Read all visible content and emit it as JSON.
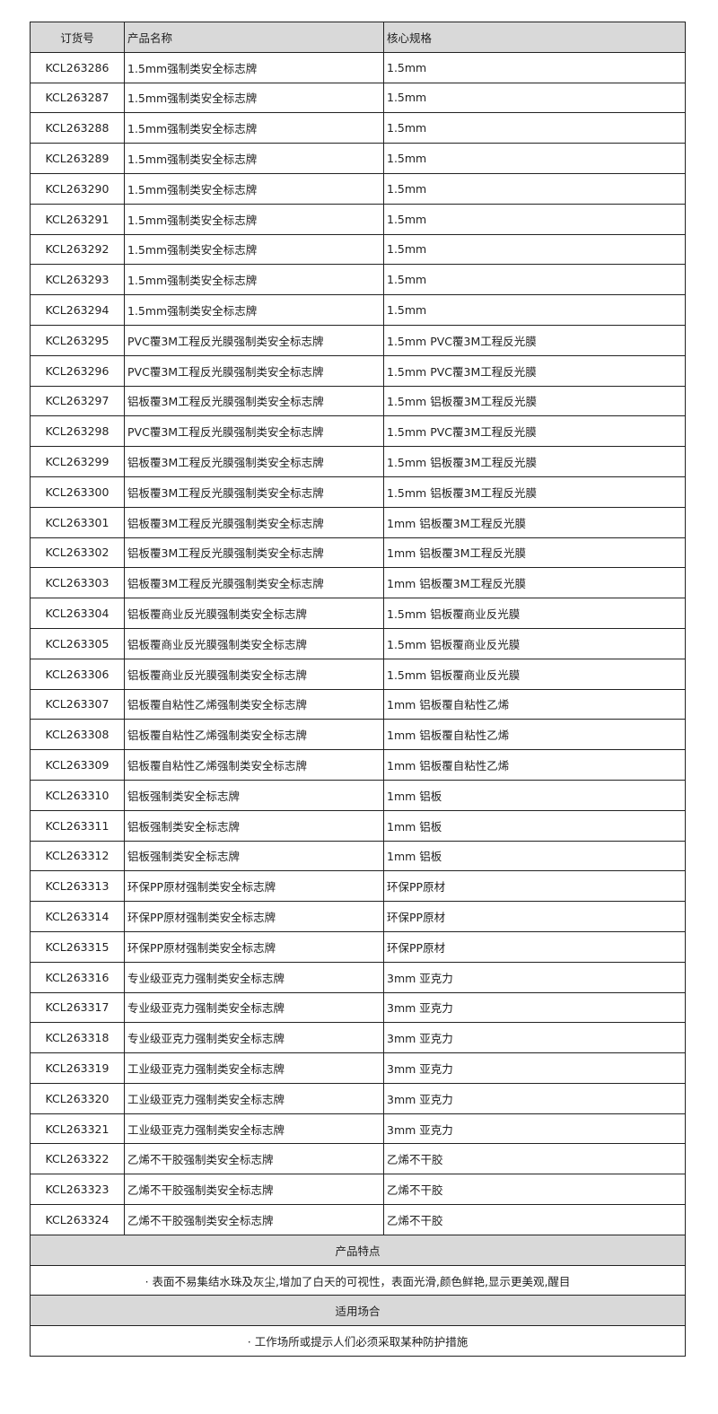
{
  "headers": [
    "订货号",
    "产品名称",
    "核心规格"
  ],
  "rows": [
    [
      "KCL263286",
      "1.5mm强制类安全标志牌",
      "1.5mm"
    ],
    [
      "KCL263287",
      "1.5mm强制类安全标志牌",
      "1.5mm"
    ],
    [
      "KCL263288",
      "1.5mm强制类安全标志牌",
      "1.5mm"
    ],
    [
      "KCL263289",
      "1.5mm强制类安全标志牌",
      "1.5mm"
    ],
    [
      "KCL263290",
      "1.5mm强制类安全标志牌",
      "1.5mm"
    ],
    [
      "KCL263291",
      "1.5mm强制类安全标志牌",
      "1.5mm"
    ],
    [
      "KCL263292",
      "1.5mm强制类安全标志牌",
      "1.5mm"
    ],
    [
      "KCL263293",
      "1.5mm强制类安全标志牌",
      "1.5mm"
    ],
    [
      "KCL263294",
      "1.5mm强制类安全标志牌",
      "1.5mm"
    ],
    [
      "KCL263295",
      "PVC覆3M工程反光膜强制类安全标志牌",
      "1.5mm PVC覆3M工程反光膜"
    ],
    [
      "KCL263296",
      "PVC覆3M工程反光膜强制类安全标志牌",
      "1.5mm PVC覆3M工程反光膜"
    ],
    [
      "KCL263297",
      "铝板覆3M工程反光膜强制类安全标志牌",
      "1.5mm 铝板覆3M工程反光膜"
    ],
    [
      "KCL263298",
      "PVC覆3M工程反光膜强制类安全标志牌",
      "1.5mm PVC覆3M工程反光膜"
    ],
    [
      "KCL263299",
      "铝板覆3M工程反光膜强制类安全标志牌",
      "1.5mm 铝板覆3M工程反光膜"
    ],
    [
      "KCL263300",
      "铝板覆3M工程反光膜强制类安全标志牌",
      "1.5mm 铝板覆3M工程反光膜"
    ],
    [
      "KCL263301",
      "铝板覆3M工程反光膜强制类安全标志牌",
      "1mm 铝板覆3M工程反光膜"
    ],
    [
      "KCL263302",
      "铝板覆3M工程反光膜强制类安全标志牌",
      "1mm 铝板覆3M工程反光膜"
    ],
    [
      "KCL263303",
      "铝板覆3M工程反光膜强制类安全标志牌",
      "1mm 铝板覆3M工程反光膜"
    ],
    [
      "KCL263304",
      "铝板覆商业反光膜强制类安全标志牌",
      "1.5mm 铝板覆商业反光膜"
    ],
    [
      "KCL263305",
      "铝板覆商业反光膜强制类安全标志牌",
      "1.5mm 铝板覆商业反光膜"
    ],
    [
      "KCL263306",
      "铝板覆商业反光膜强制类安全标志牌",
      "1.5mm 铝板覆商业反光膜"
    ],
    [
      "KCL263307",
      "铝板覆自粘性乙烯强制类安全标志牌",
      "1mm 铝板覆自粘性乙烯"
    ],
    [
      "KCL263308",
      "铝板覆自粘性乙烯强制类安全标志牌",
      "1mm 铝板覆自粘性乙烯"
    ],
    [
      "KCL263309",
      "铝板覆自粘性乙烯强制类安全标志牌",
      "1mm 铝板覆自粘性乙烯"
    ],
    [
      "KCL263310",
      "铝板强制类安全标志牌",
      "1mm 铝板"
    ],
    [
      "KCL263311",
      "铝板强制类安全标志牌",
      "1mm 铝板"
    ],
    [
      "KCL263312",
      "铝板强制类安全标志牌",
      "1mm 铝板"
    ],
    [
      "KCL263313",
      "环保PP原材强制类安全标志牌",
      "环保PP原材"
    ],
    [
      "KCL263314",
      "环保PP原材强制类安全标志牌",
      "环保PP原材"
    ],
    [
      "KCL263315",
      "环保PP原材强制类安全标志牌",
      "环保PP原材"
    ],
    [
      "KCL263316",
      "专业级亚克力强制类安全标志牌",
      "3mm 亚克力"
    ],
    [
      "KCL263317",
      "专业级亚克力强制类安全标志牌",
      "3mm 亚克力"
    ],
    [
      "KCL263318",
      "专业级亚克力强制类安全标志牌",
      "3mm 亚克力"
    ],
    [
      "KCL263319",
      "工业级亚克力强制类安全标志牌",
      "3mm 亚克力"
    ],
    [
      "KCL263320",
      "工业级亚克力强制类安全标志牌",
      "3mm 亚克力"
    ],
    [
      "KCL263321",
      "工业级亚克力强制类安全标志牌",
      "3mm 亚克力"
    ],
    [
      "KCL263322",
      "乙烯不干胶强制类安全标志牌",
      "乙烯不干胶"
    ],
    [
      "KCL263323",
      "乙烯不干胶强制类安全标志牌",
      "乙烯不干胶"
    ],
    [
      "KCL263324",
      "乙烯不干胶强制类安全标志牌",
      "乙烯不干胶"
    ]
  ],
  "features": {
    "title": "产品特点",
    "text": "· 表面不易集结水珠及灰尘,增加了白天的可视性，表面光滑,颜色鲜艳,显示更美观,醒目"
  },
  "usage": {
    "title": "适用场合",
    "text": "· 工作场所或提示人们必须采取某种防护措施"
  }
}
